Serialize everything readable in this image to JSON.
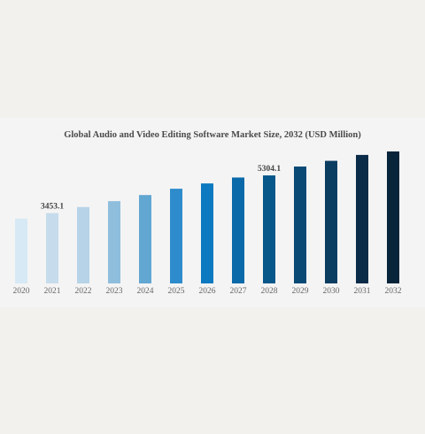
{
  "chart_data": {
    "type": "bar",
    "title": "Global Audio and Video Editing Software Market Size, 2032 (USD Million)",
    "xlabel": "",
    "ylabel": "",
    "categories": [
      "2020",
      "2021",
      "2022",
      "2023",
      "2024",
      "2025",
      "2026",
      "2027",
      "2028",
      "2029",
      "2030",
      "2031",
      "2032"
    ],
    "values": [
      3180,
      3453.1,
      3750,
      4040,
      4340,
      4650,
      4910,
      5200,
      5304.1,
      5740,
      6020,
      6310,
      6480
    ],
    "data_labels": {
      "1": "3453.1",
      "8": "5304.1"
    },
    "colors": [
      "#d6e9f5",
      "#c6dcec",
      "#b6d3e8",
      "#8fbedd",
      "#62a6d2",
      "#2e8ccc",
      "#0c79c0",
      "#0a69a9",
      "#07578b",
      "#084a75",
      "#0b3d60",
      "#0a2c48",
      "#07243a"
    ],
    "ylim": [
      0,
      6480
    ],
    "grid": false,
    "legend": "none"
  }
}
